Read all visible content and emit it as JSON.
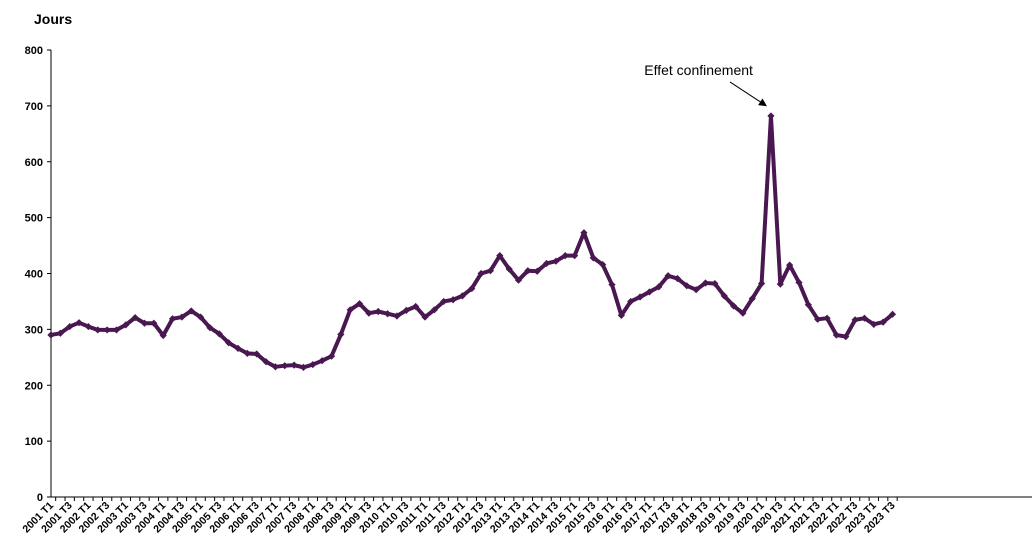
{
  "chart_data": {
    "type": "line",
    "title": "",
    "ylabel": "Jours",
    "xlabel": "",
    "ylim": [
      0,
      800
    ],
    "yticks": [
      0,
      100,
      200,
      300,
      400,
      500,
      600,
      700,
      800
    ],
    "grid": false,
    "legend": "none",
    "x": [
      "2001 T1",
      "2001 T2",
      "2001 T3",
      "2001 T4",
      "2002 T1",
      "2002 T2",
      "2002 T3",
      "2002 T4",
      "2003 T1",
      "2003 T2",
      "2003 T3",
      "2003 T4",
      "2004 T1",
      "2004 T2",
      "2004 T3",
      "2004 T4",
      "2005 T1",
      "2005 T2",
      "2005 T3",
      "2005 T4",
      "2006 T1",
      "2006 T2",
      "2006 T3",
      "2006 T4",
      "2007 T1",
      "2007 T2",
      "2007 T3",
      "2007 T4",
      "2008 T1",
      "2008 T2",
      "2008 T3",
      "2008 T4",
      "2009 T1",
      "2009 T2",
      "2009 T3",
      "2009 T4",
      "2010 T1",
      "2010 T2",
      "2010 T3",
      "2010 T4",
      "2011 T1",
      "2011 T2",
      "2011 T3",
      "2011 T4",
      "2012 T1",
      "2012 T2",
      "2012 T3",
      "2012 T4",
      "2013 T1",
      "2013 T2",
      "2013 T3",
      "2013 T4",
      "2014 T1",
      "2014 T2",
      "2014 T3",
      "2014 T4",
      "2015 T1",
      "2015 T2",
      "2015 T3",
      "2015 T4",
      "2016 T1",
      "2016 T2",
      "2016 T3",
      "2016 T4",
      "2017 T1",
      "2017 T2",
      "2017 T3",
      "2017 T4",
      "2018 T1",
      "2018 T2",
      "2018 T3",
      "2018 T4",
      "2019 T1",
      "2019 T2",
      "2019 T3",
      "2019 T4",
      "2020 T1",
      "2020 T2",
      "2020 T3",
      "2020 T4",
      "2021 T1",
      "2021 T2",
      "2021 T3",
      "2021 T4",
      "2022 T1",
      "2022 T2",
      "2022 T3",
      "2022 T4",
      "2023 T1",
      "2023 T2",
      "2023 T3"
    ],
    "xtick_labels": [
      "2001 T1",
      "2001 T3",
      "2002 T1",
      "2002 T3",
      "2003 T1",
      "2003 T3",
      "2004 T1",
      "2004 T3",
      "2005 T1",
      "2005 T3",
      "2006 T1",
      "2006 T3",
      "2007 T1",
      "2007 T3",
      "2008 T1",
      "2008 T3",
      "2009 T1",
      "2009 T3",
      "2010 T1",
      "2010 T3",
      "2011 T1",
      "2011 T3",
      "2012 T1",
      "2012 T3",
      "2013 T1",
      "2013 T3",
      "2014 T1",
      "2014 T3",
      "2015 T1",
      "2015 T3",
      "2016 T1",
      "2016 T3",
      "2017 T1",
      "2017 T3",
      "2018 T1",
      "2018 T3",
      "2019 T1",
      "2019 T3",
      "2020 T1",
      "2020 T3",
      "2021 T1",
      "2021 T3",
      "2022 T1",
      "2022 T3",
      "2023 T1",
      "2023 T3"
    ],
    "series": [
      {
        "color": "#4a1850",
        "values": [
          290,
          293,
          305,
          312,
          305,
          299,
          299,
          299,
          308,
          321,
          311,
          311,
          289,
          319,
          322,
          333,
          322,
          303,
          292,
          276,
          266,
          257,
          256,
          242,
          233,
          235,
          236,
          232,
          237,
          244,
          252,
          291,
          335,
          346,
          329,
          332,
          328,
          324,
          334,
          341,
          322,
          335,
          350,
          353,
          360,
          373,
          400,
          405,
          432,
          408,
          388,
          405,
          404,
          418,
          422,
          432,
          432,
          473,
          428,
          416,
          380,
          325,
          350,
          358,
          367,
          376,
          396,
          391,
          378,
          371,
          383,
          382,
          360,
          342,
          329,
          355,
          382,
          682,
          381,
          415,
          384,
          344,
          318,
          320,
          290,
          287,
          317,
          320,
          309,
          313,
          327
        ]
      }
    ],
    "annotations": [
      {
        "text": "Effet confinement",
        "target_x": "2020 T2",
        "target_y": 682
      }
    ]
  }
}
